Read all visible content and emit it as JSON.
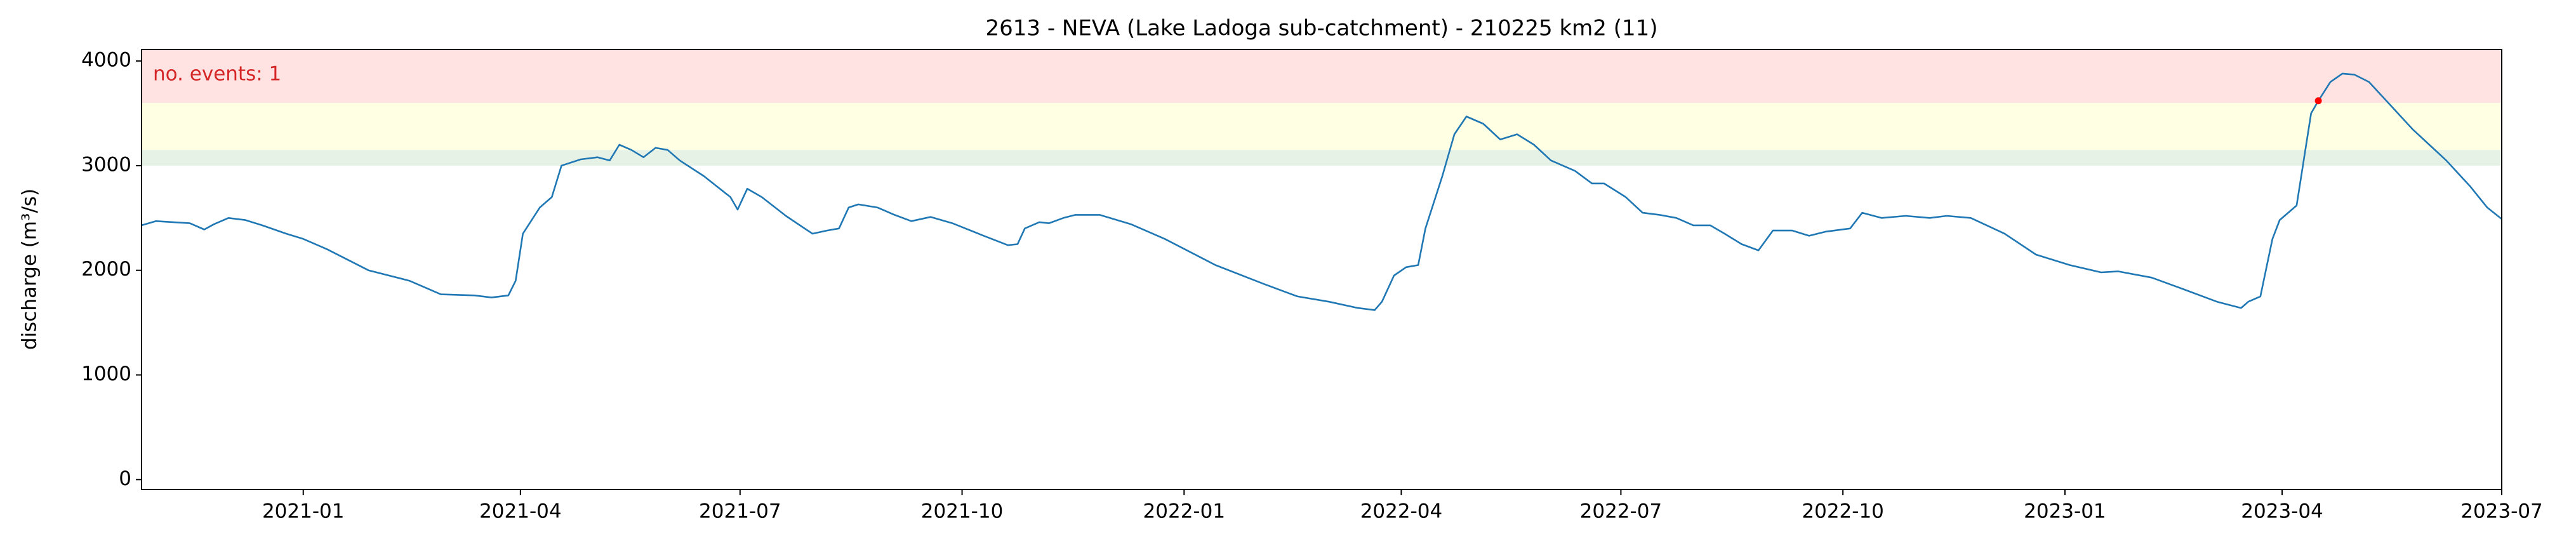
{
  "chart_data": {
    "type": "line",
    "title": "2613 - NEVA (Lake Ladoga sub-catchment) - 210225 km2 (11)",
    "ylabel": "discharge (m³/s)",
    "annotation": "no. events: 1",
    "annotation_color": "#d62728",
    "xlim": [
      "2020-10-26",
      "2023-07-01"
    ],
    "xticks": [
      "2021-01",
      "2021-04",
      "2021-07",
      "2021-10",
      "2022-01",
      "2022-04",
      "2022-07",
      "2022-10",
      "2023-01",
      "2023-04",
      "2023-07"
    ],
    "ylim": [
      -95,
      4110
    ],
    "yticks": [
      0,
      1000,
      2000,
      3000,
      4000
    ],
    "bands": [
      {
        "lower": 3000,
        "color": "#e6f2e6"
      },
      {
        "lower": 3150,
        "color": "#ffffe3"
      },
      {
        "lower": 3600,
        "color": "#ffe3e3"
      }
    ],
    "series": [
      {
        "color": "#1f77b4",
        "x": [
          "2020-10-26",
          "2020-11-01",
          "2020-11-08",
          "2020-11-15",
          "2020-11-21",
          "2020-11-25",
          "2020-12-01",
          "2020-12-08",
          "2020-12-15",
          "2020-12-25",
          "2021-01-01",
          "2021-01-11",
          "2021-01-28",
          "2021-02-14",
          "2021-02-27",
          "2021-03-13",
          "2021-03-20",
          "2021-03-27",
          "2021-03-30",
          "2021-04-02",
          "2021-04-09",
          "2021-04-14",
          "2021-04-18",
          "2021-04-26",
          "2021-05-03",
          "2021-05-08",
          "2021-05-12",
          "2021-05-17",
          "2021-05-22",
          "2021-05-27",
          "2021-06-01",
          "2021-06-06",
          "2021-06-16",
          "2021-06-27",
          "2021-06-30",
          "2021-07-04",
          "2021-07-10",
          "2021-07-20",
          "2021-07-31",
          "2021-08-06",
          "2021-08-11",
          "2021-08-15",
          "2021-08-19",
          "2021-08-27",
          "2021-09-03",
          "2021-09-10",
          "2021-09-18",
          "2021-09-27",
          "2021-10-10",
          "2021-10-20",
          "2021-10-24",
          "2021-10-27",
          "2021-11-02",
          "2021-11-06",
          "2021-11-12",
          "2021-11-17",
          "2021-11-27",
          "2021-12-10",
          "2021-12-24",
          "2022-01-14",
          "2022-02-03",
          "2022-02-17",
          "2022-03-02",
          "2022-03-14",
          "2022-03-21",
          "2022-03-24",
          "2022-03-29",
          "2022-04-03",
          "2022-04-08",
          "2022-04-11",
          "2022-04-18",
          "2022-04-23",
          "2022-04-28",
          "2022-05-05",
          "2022-05-12",
          "2022-05-19",
          "2022-05-26",
          "2022-06-02",
          "2022-06-12",
          "2022-06-19",
          "2022-06-24",
          "2022-07-03",
          "2022-07-10",
          "2022-07-17",
          "2022-07-24",
          "2022-07-31",
          "2022-08-07",
          "2022-08-13",
          "2022-08-20",
          "2022-08-27",
          "2022-09-02",
          "2022-09-10",
          "2022-09-17",
          "2022-09-24",
          "2022-10-04",
          "2022-10-09",
          "2022-10-17",
          "2022-10-27",
          "2022-11-06",
          "2022-11-13",
          "2022-11-23",
          "2022-12-07",
          "2022-12-20",
          "2023-01-03",
          "2023-01-16",
          "2023-01-23",
          "2023-02-06",
          "2023-02-19",
          "2023-03-05",
          "2023-03-15",
          "2023-03-18",
          "2023-03-23",
          "2023-03-28",
          "2023-03-31",
          "2023-04-07",
          "2023-04-13",
          "2023-04-16",
          "2023-04-21",
          "2023-04-26",
          "2023-05-01",
          "2023-05-07",
          "2023-05-15",
          "2023-05-25",
          "2023-06-08",
          "2023-06-18",
          "2023-06-25",
          "2023-07-01"
        ],
        "values": [
          2430,
          2470,
          2460,
          2450,
          2390,
          2440,
          2500,
          2480,
          2430,
          2350,
          2300,
          2200,
          2000,
          1900,
          1770,
          1760,
          1740,
          1760,
          1900,
          2350,
          2600,
          2700,
          3000,
          3060,
          3080,
          3050,
          3200,
          3150,
          3080,
          3170,
          3150,
          3050,
          2900,
          2700,
          2580,
          2780,
          2700,
          2520,
          2350,
          2380,
          2400,
          2600,
          2630,
          2600,
          2530,
          2470,
          2510,
          2450,
          2330,
          2240,
          2250,
          2400,
          2460,
          2450,
          2500,
          2530,
          2530,
          2440,
          2300,
          2050,
          1870,
          1750,
          1700,
          1640,
          1620,
          1700,
          1950,
          2030,
          2050,
          2400,
          2900,
          3300,
          3470,
          3400,
          3250,
          3300,
          3200,
          3050,
          2950,
          2830,
          2830,
          2700,
          2550,
          2530,
          2500,
          2430,
          2430,
          2350,
          2250,
          2190,
          2380,
          2380,
          2330,
          2370,
          2400,
          2550,
          2500,
          2520,
          2500,
          2520,
          2500,
          2350,
          2150,
          2050,
          1980,
          1990,
          1930,
          1820,
          1700,
          1640,
          1700,
          1750,
          2300,
          2480,
          2620,
          3500,
          3620,
          3800,
          3880,
          3870,
          3800,
          3600,
          3350,
          3050,
          2800,
          2600,
          2490
        ]
      }
    ],
    "event": {
      "x": "2023-04-16",
      "value": 3620,
      "color": "#ff0000"
    }
  }
}
